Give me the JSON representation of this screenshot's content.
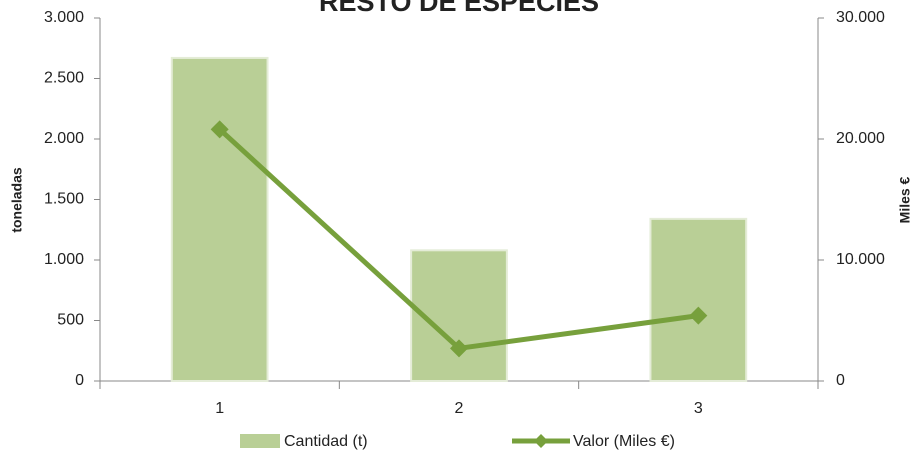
{
  "chart_data": {
    "type": "bar_line",
    "title": "RESTO DE ESPECIES",
    "categories": [
      "1",
      "2",
      "3"
    ],
    "ylabel": "toneladas",
    "y2label": "Miles €",
    "ylim": [
      0,
      3000
    ],
    "yticks": [
      0,
      500,
      {
        "value": 1000,
        "label": "1.000"
      },
      {
        "value": 1500,
        "label": "1.500"
      },
      {
        "value": 2000,
        "label": "2.000"
      },
      {
        "value": 2500,
        "label": "2.500"
      },
      {
        "value": 3000,
        "label": "3.000"
      }
    ],
    "y2lim": [
      0,
      30000
    ],
    "y2ticks": [
      0,
      {
        "value": 10000,
        "label": "10.000"
      },
      {
        "value": 20000,
        "label": "20.000"
      },
      {
        "value": 30000,
        "label": "30.000"
      }
    ],
    "series": [
      {
        "name": "Cantidad (t)",
        "kind": "bar",
        "color": "#b9cf96",
        "values": [
          2670,
          1080,
          1340
        ]
      },
      {
        "name": "Valor (Miles €)",
        "kind": "line",
        "axis": "y2",
        "color": "#77a03c",
        "values": [
          20800,
          2700,
          5400
        ]
      }
    ],
    "legend": "bottom"
  }
}
